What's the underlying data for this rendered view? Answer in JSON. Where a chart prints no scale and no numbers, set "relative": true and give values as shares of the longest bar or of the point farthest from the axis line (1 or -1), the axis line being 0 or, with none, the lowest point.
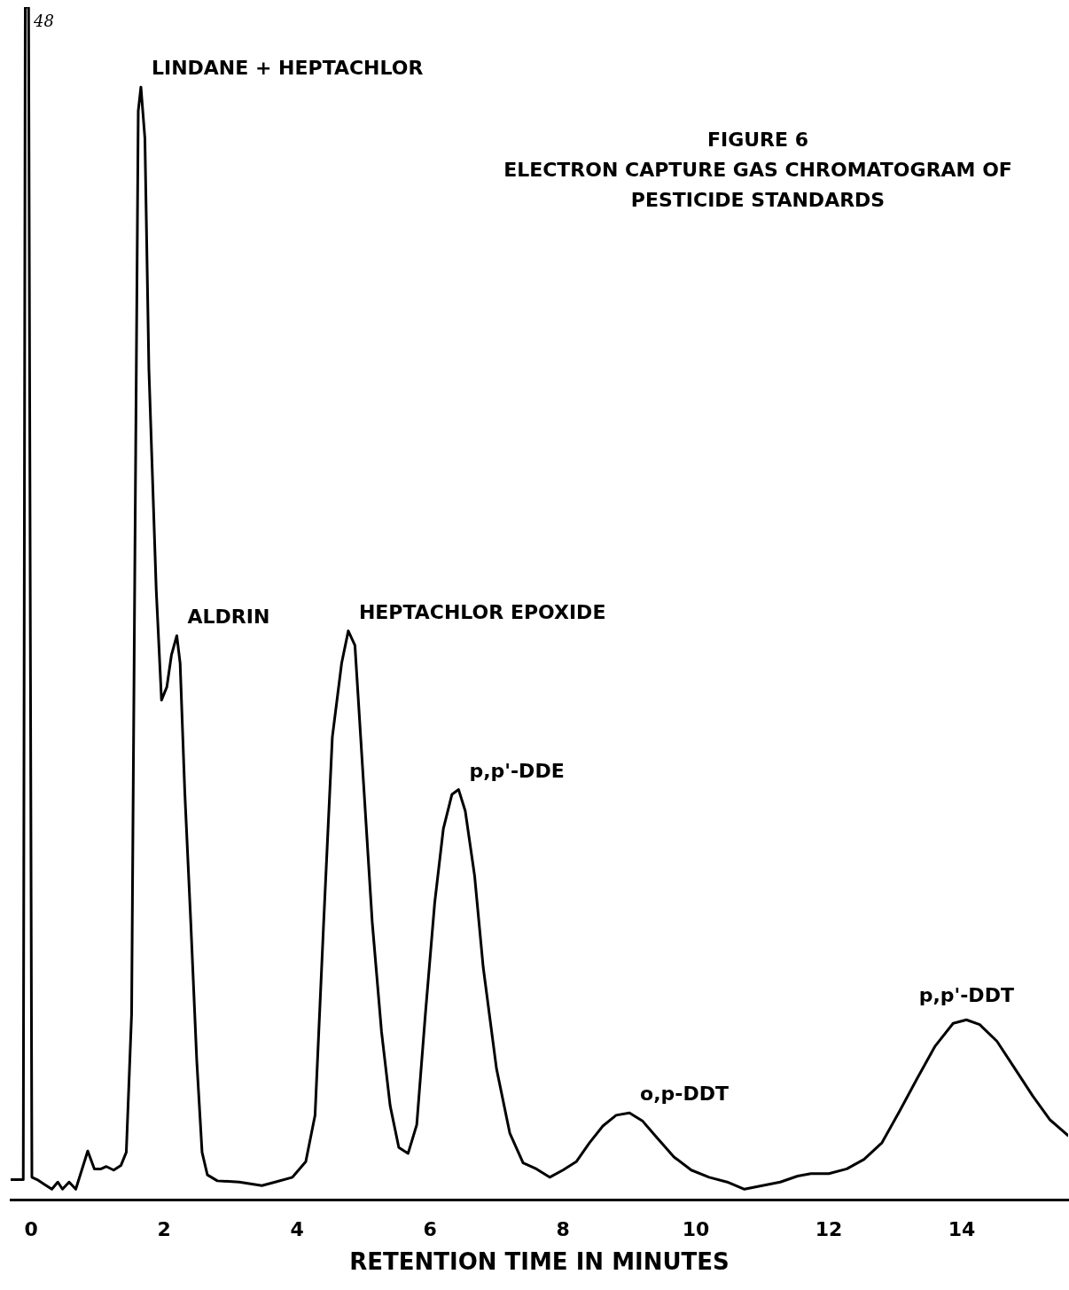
{
  "chart_data": {
    "type": "line",
    "title": "FIGURE 6",
    "subtitle": "ELECTRON CAPTURE GAS CHROMATOGRAM OF PESTICIDE STANDARDS",
    "xlabel": "RETENTION TIME IN MINUTES",
    "relative": true,
    "xlim": [
      -0.31,
      15.6
    ],
    "xticks": [
      0,
      2,
      4,
      6,
      8,
      10,
      12,
      14
    ],
    "grid": false,
    "legend": false,
    "marker": "none",
    "line_style": "solid",
    "series": [
      {
        "color": "#000000",
        "x": [
          -0.31,
          -0.12,
          -0.09,
          -0.04,
          0.01,
          0.09,
          0.2,
          0.31,
          0.4,
          0.47,
          0.57,
          0.67,
          0.76,
          0.85,
          0.95,
          1.05,
          1.13,
          1.24,
          1.35,
          1.43,
          1.51,
          1.56,
          1.61,
          1.65,
          1.71,
          1.77,
          1.88,
          1.96,
          2.04,
          2.11,
          2.19,
          2.24,
          2.31,
          2.4,
          2.49,
          2.57,
          2.65,
          2.8,
          3.13,
          3.47,
          3.67,
          3.93,
          4.13,
          4.27,
          4.4,
          4.53,
          4.67,
          4.77,
          4.87,
          5.0,
          5.13,
          5.27,
          5.4,
          5.53,
          5.67,
          5.8,
          5.93,
          6.07,
          6.2,
          6.33,
          6.43,
          6.53,
          6.67,
          6.8,
          7.0,
          7.2,
          7.4,
          7.6,
          7.8,
          8.0,
          8.2,
          8.4,
          8.6,
          8.8,
          9.0,
          9.2,
          9.4,
          9.67,
          9.93,
          10.2,
          10.47,
          10.73,
          11.0,
          11.27,
          11.53,
          11.73,
          12.0,
          12.27,
          12.53,
          12.8,
          13.07,
          13.33,
          13.6,
          13.87,
          14.07,
          14.27,
          14.53,
          14.8,
          15.07,
          15.33,
          15.6
        ],
        "values": [
          0.017,
          0.017,
          1.0,
          1.0,
          0.019,
          0.017,
          0.013,
          0.009,
          0.015,
          0.009,
          0.015,
          0.009,
          0.025,
          0.041,
          0.026,
          0.026,
          0.028,
          0.025,
          0.029,
          0.04,
          0.156,
          0.543,
          0.913,
          0.933,
          0.89,
          0.697,
          0.512,
          0.419,
          0.43,
          0.457,
          0.473,
          0.45,
          0.342,
          0.233,
          0.117,
          0.04,
          0.021,
          0.016,
          0.015,
          0.012,
          0.015,
          0.019,
          0.032,
          0.071,
          0.233,
          0.388,
          0.45,
          0.477,
          0.465,
          0.349,
          0.233,
          0.141,
          0.079,
          0.044,
          0.039,
          0.063,
          0.156,
          0.249,
          0.311,
          0.34,
          0.344,
          0.326,
          0.272,
          0.195,
          0.11,
          0.056,
          0.031,
          0.026,
          0.019,
          0.025,
          0.032,
          0.048,
          0.062,
          0.071,
          0.073,
          0.066,
          0.053,
          0.036,
          0.025,
          0.019,
          0.015,
          0.009,
          0.012,
          0.015,
          0.02,
          0.022,
          0.022,
          0.026,
          0.034,
          0.048,
          0.075,
          0.102,
          0.129,
          0.148,
          0.151,
          0.147,
          0.133,
          0.11,
          0.087,
          0.067,
          0.054
        ]
      }
    ],
    "annotations": [
      "48",
      {
        "text": "LINDANE + HEPTACHLOR",
        "x": 1.65,
        "y": 0.933
      },
      {
        "text": "ALDRIN",
        "x": 2.19,
        "y": 0.473
      },
      {
        "text": "HEPTACHLOR EPOXIDE",
        "x": 4.77,
        "y": 0.477
      },
      {
        "text": "p,p'-DDE",
        "x": 6.43,
        "y": 0.344
      },
      {
        "text": "o,p-DDT",
        "x": 9.0,
        "y": 0.073
      },
      {
        "text": "p,p'-DDT",
        "x": 14.07,
        "y": 0.151
      }
    ]
  }
}
